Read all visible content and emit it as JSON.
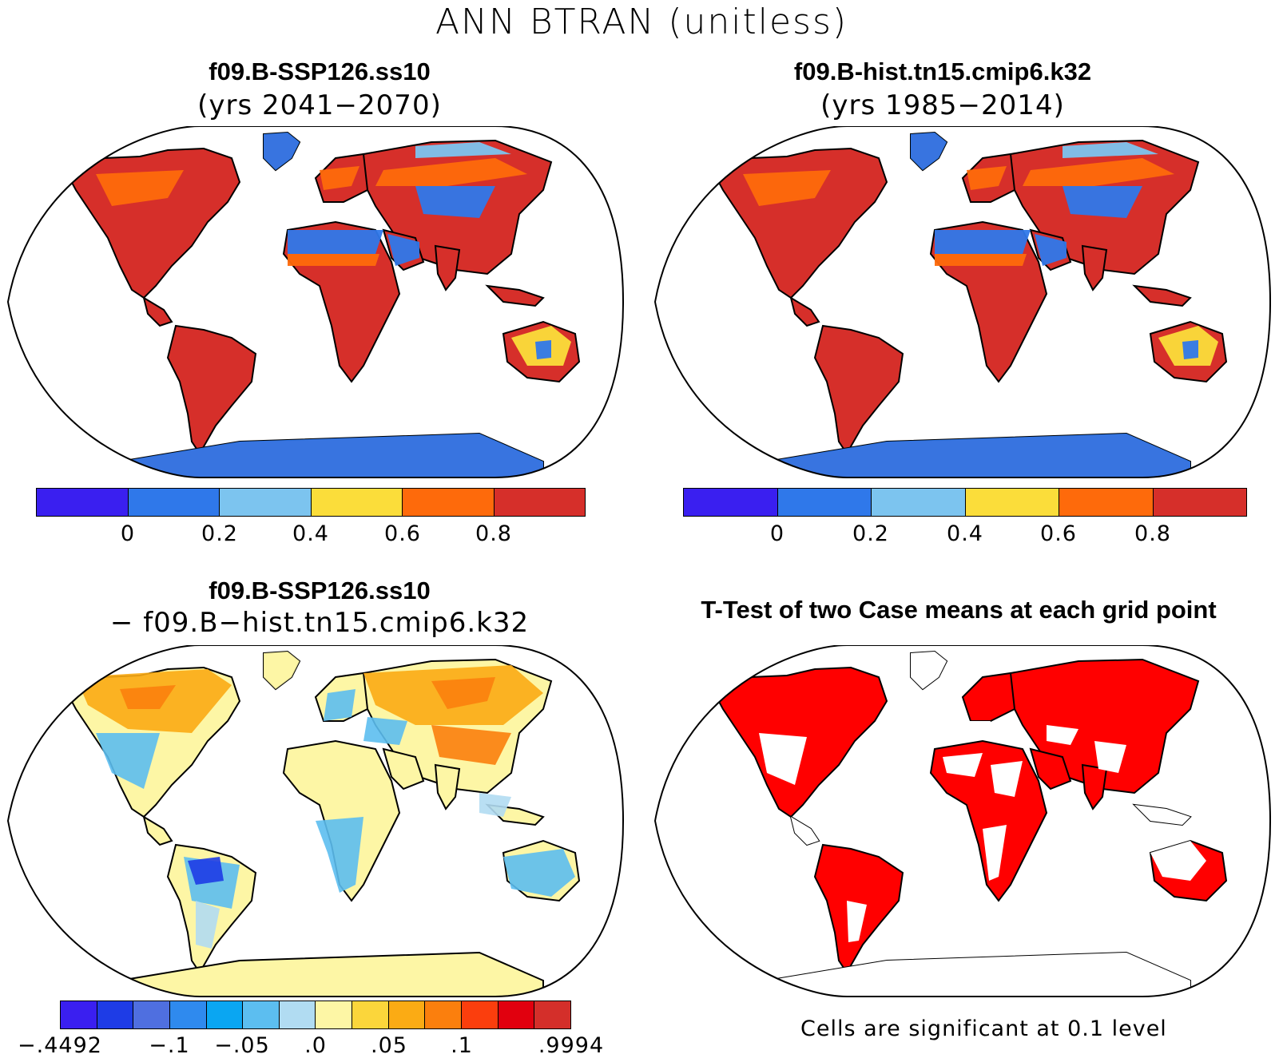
{
  "title": "ANN BTRAN (unitless)",
  "panels": [
    {
      "title": "f09.B-SSP126.ss10",
      "subtitle": "(yrs 2041−2070)",
      "colorbar": {
        "colors": [
          "#3a1ff0",
          "#2f78ea",
          "#7cc4ef",
          "#fbdd3a",
          "#fe6a0b",
          "#d62f2a"
        ],
        "ticks": [
          "0",
          "0.2",
          "0.4",
          "0.6",
          "0.8"
        ]
      }
    },
    {
      "title": "f09.B-hist.tn15.cmip6.k32",
      "subtitle": "(yrs 1985−2014)",
      "colorbar": {
        "colors": [
          "#3a1ff0",
          "#2f78ea",
          "#7cc4ef",
          "#fbdd3a",
          "#fe6a0b",
          "#d62f2a"
        ],
        "ticks": [
          "0",
          "0.2",
          "0.4",
          "0.6",
          "0.8"
        ]
      }
    },
    {
      "title": "f09.B-SSP126.ss10",
      "subtitle": "− f09.B−hist.tn15.cmip6.k32",
      "colorbar": {
        "colors": [
          "#3a1ff0",
          "#1e3ce6",
          "#4f6fe0",
          "#2f8aee",
          "#0aa6f2",
          "#5cbef0",
          "#b1dcf2",
          "#fdf6a5",
          "#fbd63b",
          "#fbab14",
          "#fb7f0d",
          "#fb3e0d",
          "#e1000e",
          "#d42f2a"
        ],
        "ticks": [
          "−.4492",
          "−.1",
          "−.05",
          ".0",
          ".05",
          ".1",
          ".9994"
        ]
      }
    },
    {
      "title": "T-Test of two Case means at each grid point",
      "note": "Cells are significant at 0.1 level",
      "fill": "#ff0000"
    }
  ]
}
